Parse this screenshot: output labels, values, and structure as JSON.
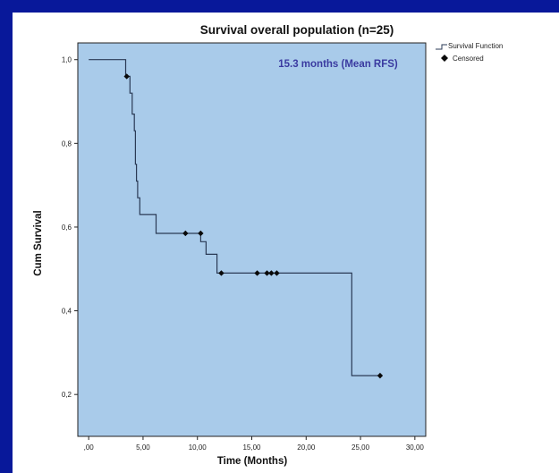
{
  "chart_data": {
    "type": "line",
    "title": "Survival overall population (n=25)",
    "xlabel": "Time (Months)",
    "ylabel": "Cum Survival",
    "xlim": [
      -1,
      31
    ],
    "ylim": [
      0.1,
      1.04
    ],
    "x_ticks": [
      0,
      5,
      10,
      15,
      20,
      25,
      30
    ],
    "x_tick_labels": [
      ",00",
      "5,00",
      "10,00",
      "15,00",
      "20,00",
      "25,00",
      "30,00"
    ],
    "y_ticks": [
      0.2,
      0.4,
      0.6,
      0.8,
      1.0
    ],
    "y_tick_labels": [
      "0,2",
      "0,4",
      "0,6",
      "0,8",
      "1,0"
    ],
    "annotation": "15.3 months (Mean RFS)",
    "legend_position": "top-right",
    "grid": false,
    "colors": {
      "plot_background": "#a9cbea",
      "line": "#2a3a55",
      "marker": "#0a0a0a",
      "annotation": "#3a3aa0",
      "frame": "#08189a"
    },
    "series": [
      {
        "name": "Survival Function",
        "kind": "step",
        "points": [
          [
            0,
            1.0
          ],
          [
            3.4,
            1.0
          ],
          [
            3.4,
            0.96
          ],
          [
            3.8,
            0.96
          ],
          [
            3.8,
            0.92
          ],
          [
            4.0,
            0.92
          ],
          [
            4.0,
            0.87
          ],
          [
            4.2,
            0.87
          ],
          [
            4.2,
            0.83
          ],
          [
            4.3,
            0.83
          ],
          [
            4.3,
            0.75
          ],
          [
            4.4,
            0.75
          ],
          [
            4.4,
            0.71
          ],
          [
            4.5,
            0.71
          ],
          [
            4.5,
            0.67
          ],
          [
            4.7,
            0.67
          ],
          [
            4.7,
            0.63
          ],
          [
            6.2,
            0.63
          ],
          [
            6.2,
            0.585
          ],
          [
            10.3,
            0.585
          ],
          [
            10.3,
            0.565
          ],
          [
            10.8,
            0.565
          ],
          [
            10.8,
            0.535
          ],
          [
            11.8,
            0.535
          ],
          [
            11.8,
            0.49
          ],
          [
            24.2,
            0.49
          ],
          [
            24.2,
            0.245
          ],
          [
            26.8,
            0.245
          ]
        ]
      },
      {
        "name": "Censored",
        "kind": "markers",
        "points": [
          [
            3.5,
            0.96
          ],
          [
            8.9,
            0.585
          ],
          [
            10.3,
            0.585
          ],
          [
            12.2,
            0.49
          ],
          [
            15.5,
            0.49
          ],
          [
            16.4,
            0.49
          ],
          [
            16.8,
            0.49
          ],
          [
            17.3,
            0.49
          ],
          [
            26.8,
            0.245
          ]
        ]
      }
    ]
  }
}
